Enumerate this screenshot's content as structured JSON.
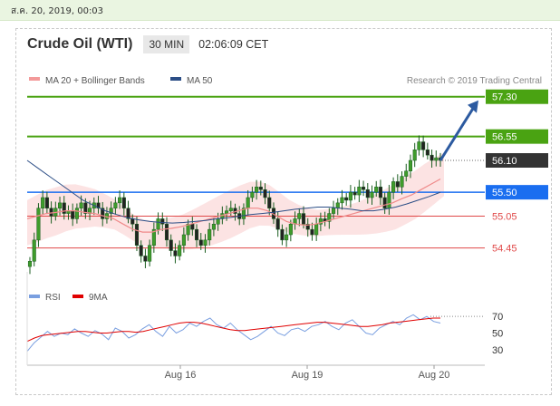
{
  "datebar": {
    "text": "ส.ค. 20, 2019, 00:03"
  },
  "header": {
    "title": "Crude Oil (WTI)",
    "timeframe": "30 MIN",
    "time": "02:06:09 CET"
  },
  "legend": {
    "items": [
      {
        "label": "MA 20 + Bollinger Bands",
        "color": "#f39a9a"
      },
      {
        "label": "MA 50",
        "color": "#2c4e86"
      }
    ],
    "credit": "Research © 2019 Trading Central"
  },
  "rsi_legend": {
    "items": [
      {
        "label": "RSI",
        "color": "#7a9fe0"
      },
      {
        "label": "9MA",
        "color": "#e00000"
      }
    ]
  },
  "chart_data": [
    {
      "type": "line",
      "x_ticks": [
        "Aug 16",
        "Aug 19",
        "Aug 20"
      ],
      "ylim": [
        54.0,
        57.5
      ],
      "price_levels": [
        {
          "label": "57.30",
          "value": 57.3,
          "kind": "resistance",
          "color": "#4aa312"
        },
        {
          "label": "56.55",
          "value": 56.55,
          "kind": "resistance",
          "color": "#4aa312"
        },
        {
          "label": "56.10",
          "value": 56.1,
          "kind": "current",
          "color": "#333333"
        },
        {
          "label": "55.50",
          "value": 55.5,
          "kind": "pivot",
          "color": "#1a6ef0"
        },
        {
          "label": "55.05",
          "value": 55.05,
          "kind": "support",
          "color": "#e04848"
        },
        {
          "label": "54.45",
          "value": 54.45,
          "kind": "support",
          "color": "#e04848"
        }
      ],
      "series": [
        {
          "name": "Price",
          "values": [
            54.2,
            54.6,
            55.2,
            55.4,
            55.2,
            55.05,
            55.2,
            55.3,
            55.1,
            55.15,
            55.0,
            55.2,
            55.3,
            55.1,
            55.2,
            55.3,
            55.2,
            55.0,
            55.1,
            55.2,
            55.3,
            55.4,
            55.2,
            55.0,
            54.9,
            54.5,
            54.3,
            54.2,
            54.5,
            54.8,
            55.0,
            54.9,
            54.6,
            54.4,
            54.3,
            54.5,
            54.7,
            54.9,
            54.8,
            54.6,
            54.5,
            54.6,
            54.8,
            54.9,
            55.0,
            55.1,
            55.15,
            55.2,
            55.1,
            55.0,
            55.2,
            55.4,
            55.5,
            55.6,
            55.55,
            55.4,
            55.2,
            55.0,
            54.8,
            54.6,
            54.7,
            54.9,
            55.0,
            55.1,
            54.9,
            54.8,
            54.7,
            54.9,
            55.0,
            54.95,
            55.1,
            55.2,
            55.3,
            55.4,
            55.35,
            55.5,
            55.45,
            55.6,
            55.55,
            55.4,
            55.5,
            55.6,
            55.4,
            55.2,
            55.5,
            55.7,
            55.6,
            55.8,
            55.9,
            56.1,
            56.3,
            56.45,
            56.3,
            56.2,
            56.1,
            56.15,
            56.1
          ]
        },
        {
          "name": "MA 20",
          "values": [
            55.0,
            55.05,
            55.1,
            55.12,
            55.15,
            55.15,
            55.12,
            55.1,
            55.05,
            55.0,
            54.9,
            54.8,
            54.75,
            54.75,
            54.8,
            54.82,
            54.85,
            54.9,
            54.95,
            55.0,
            55.05,
            55.1,
            55.15,
            55.2,
            55.2,
            55.15,
            55.05,
            54.95,
            54.9,
            54.88,
            54.9,
            54.95,
            55.0,
            55.05,
            55.1,
            55.15,
            55.2,
            55.25,
            55.3,
            55.38,
            55.45,
            55.55,
            55.65,
            55.75
          ]
        },
        {
          "name": "MA 50",
          "values": [
            56.1,
            55.95,
            55.8,
            55.65,
            55.5,
            55.35,
            55.25,
            55.15,
            55.08,
            55.02,
            54.98,
            54.95,
            54.93,
            54.92,
            54.93,
            54.95,
            54.97,
            55.0,
            55.02,
            55.05,
            55.08,
            55.1,
            55.12,
            55.15,
            55.18,
            55.2,
            55.22,
            55.22,
            55.2,
            55.18,
            55.15,
            55.15,
            55.18,
            55.22,
            55.28,
            55.35,
            55.42,
            55.5
          ]
        },
        {
          "name": "Forecast",
          "values": [
            56.1,
            57.3
          ]
        }
      ]
    },
    {
      "type": "line",
      "y_ticks": [
        30,
        50,
        70
      ],
      "ylim": [
        20,
        80
      ],
      "series": [
        {
          "name": "RSI",
          "values": [
            28,
            38,
            45,
            52,
            46,
            50,
            48,
            55,
            50,
            46,
            53,
            49,
            42,
            56,
            52,
            44,
            48,
            55,
            60,
            52,
            46,
            58,
            50,
            54,
            62,
            58,
            64,
            68,
            60,
            56,
            62,
            54,
            48,
            42,
            46,
            52,
            58,
            50,
            47,
            54,
            56,
            52,
            58,
            60,
            64,
            58,
            54,
            62,
            66,
            58,
            50,
            48,
            56,
            60,
            64,
            60,
            68,
            72,
            66,
            70,
            64,
            62
          ]
        },
        {
          "name": "9MA",
          "values": [
            40,
            44,
            47,
            48,
            49,
            50,
            51,
            52,
            52,
            51,
            50,
            50,
            51,
            52,
            52,
            51,
            52,
            54,
            56,
            58,
            60,
            62,
            63,
            63,
            62,
            60,
            58,
            56,
            54,
            53,
            53,
            54,
            55,
            56,
            57,
            58,
            59,
            60,
            61,
            62,
            63,
            63,
            62,
            61,
            60,
            59,
            58,
            58,
            59,
            60,
            62,
            63,
            64,
            65,
            66,
            67,
            68,
            68
          ]
        }
      ]
    }
  ]
}
